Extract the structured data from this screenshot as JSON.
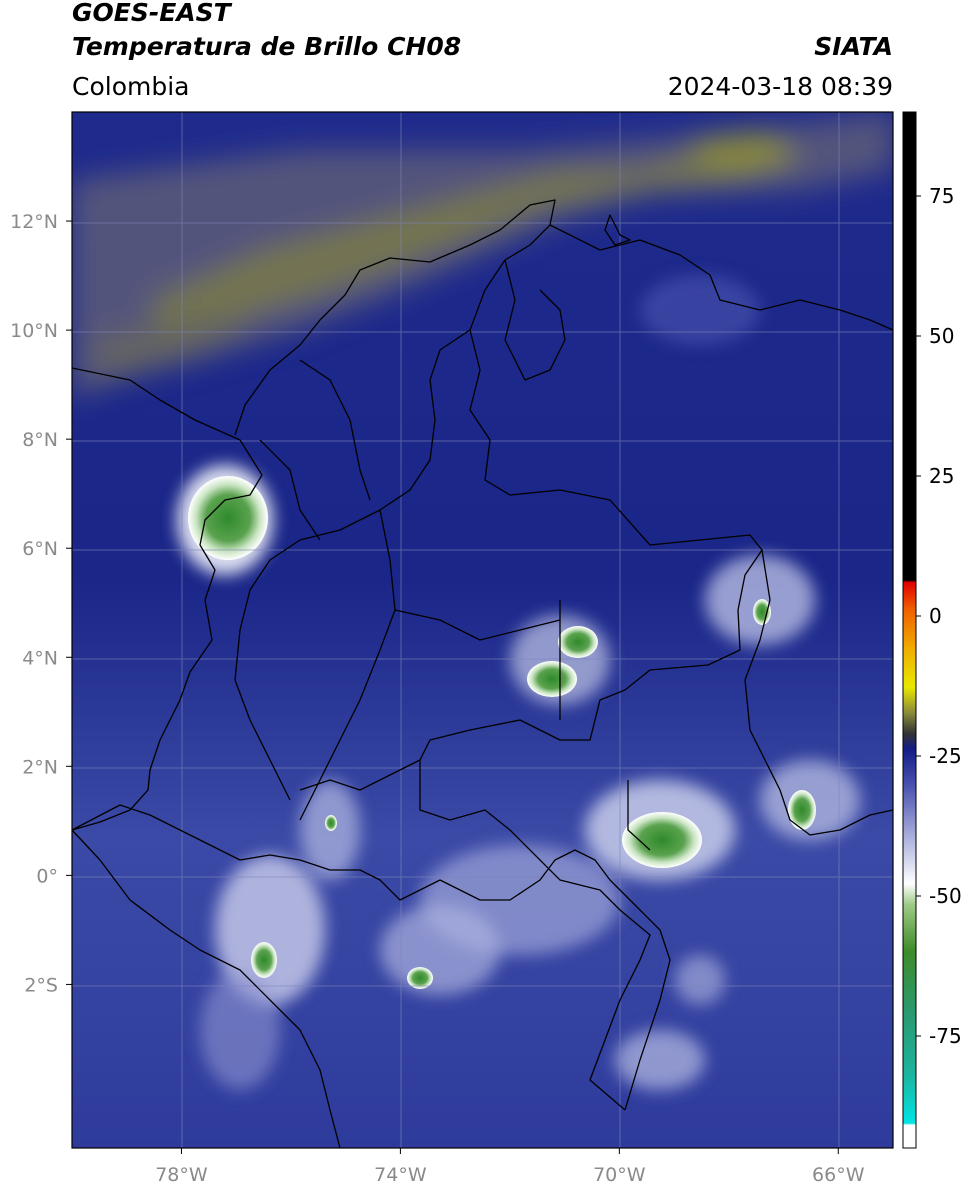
{
  "header": {
    "line1": "GOES-EAST",
    "line2": "Temperatura de Brillo CH08",
    "region": "Colombia",
    "org": "SIATA",
    "datetime": "2024-03-18 08:39"
  },
  "map": {
    "lon_range": [
      -80.0,
      -65.0
    ],
    "lat_range": [
      -5.0,
      14.0
    ],
    "lat_ticks": [
      {
        "value": 12,
        "label": "12°N"
      },
      {
        "value": 10,
        "label": "10°N"
      },
      {
        "value": 8,
        "label": "8°N"
      },
      {
        "value": 6,
        "label": "6°N"
      },
      {
        "value": 4,
        "label": "4°N"
      },
      {
        "value": 2,
        "label": "2°N"
      },
      {
        "value": 0,
        "label": "0°"
      },
      {
        "value": -2,
        "label": "2°S"
      }
    ],
    "lon_ticks": [
      {
        "value": -78,
        "label": "78°W"
      },
      {
        "value": -74,
        "label": "74°W"
      },
      {
        "value": -70,
        "label": "70°W"
      },
      {
        "value": -66,
        "label": "66°W"
      }
    ],
    "grid": true
  },
  "colorbar": {
    "range": [
      -95,
      90
    ],
    "ticks": [
      {
        "value": 75,
        "label": "75"
      },
      {
        "value": 50,
        "label": "50"
      },
      {
        "value": 25,
        "label": "25"
      },
      {
        "value": 0,
        "label": "0"
      },
      {
        "value": -25,
        "label": "-25"
      },
      {
        "value": -50,
        "label": "-50"
      },
      {
        "value": -75,
        "label": "-75"
      }
    ]
  }
}
